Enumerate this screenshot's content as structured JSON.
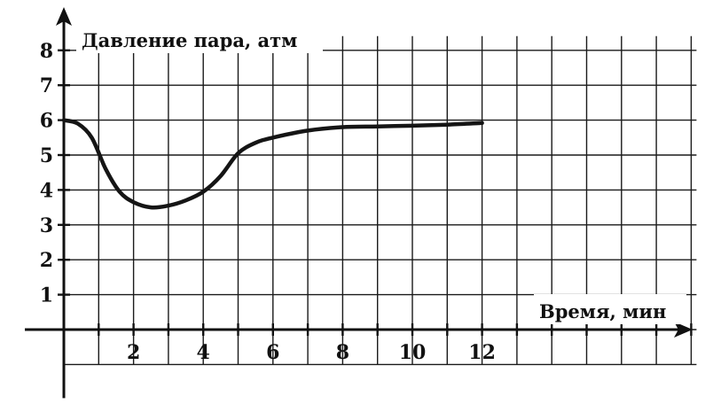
{
  "chart_data": {
    "type": "line",
    "xlabel": "Время, мин",
    "ylabel": "Давление пара, атм",
    "xlim": [
      0,
      18
    ],
    "ylim": [
      -1,
      8
    ],
    "x_ticks": [
      2,
      4,
      6,
      8,
      10,
      12
    ],
    "y_ticks": [
      1,
      2,
      3,
      4,
      5,
      6,
      7,
      8
    ],
    "grid": true,
    "series": [
      {
        "color": "#151515",
        "x": [
          0,
          0.4,
          0.8,
          1.2,
          1.6,
          2.0,
          2.5,
          3.0,
          3.5,
          4.0,
          4.5,
          5.0,
          5.5,
          6.0,
          7.0,
          8.0,
          9.0,
          10.0,
          11.0,
          12.0
        ],
        "y": [
          6.0,
          5.9,
          5.5,
          4.6,
          3.95,
          3.65,
          3.5,
          3.55,
          3.7,
          3.95,
          4.4,
          5.05,
          5.35,
          5.5,
          5.7,
          5.8,
          5.82,
          5.84,
          5.87,
          5.92
        ]
      }
    ]
  }
}
